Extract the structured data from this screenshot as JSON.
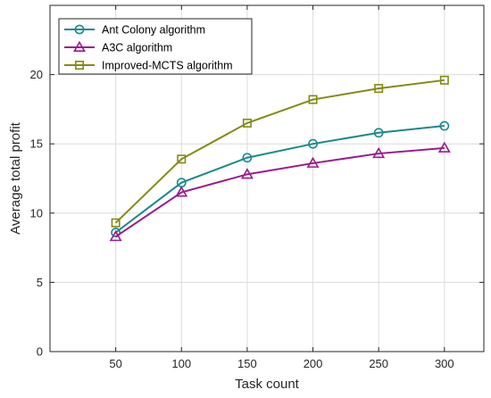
{
  "chart_data": {
    "type": "line",
    "xlabel": "Task count",
    "ylabel": "Average total profit",
    "x": [
      50,
      100,
      150,
      200,
      250,
      300
    ],
    "xlim": [
      0,
      330
    ],
    "ylim": [
      0,
      25
    ],
    "xticks": [
      50,
      100,
      150,
      200,
      250,
      300
    ],
    "yticks": [
      0,
      5,
      10,
      15,
      20
    ],
    "grid": true,
    "legend_position": "top-left",
    "series": [
      {
        "name": "Ant Colony algorithm",
        "color": "#1a8a8a",
        "marker": "circle",
        "values": [
          8.6,
          12.2,
          14.0,
          15.0,
          15.8,
          16.3
        ]
      },
      {
        "name": "A3C algorithm",
        "color": "#9b1a8e",
        "marker": "triangle",
        "values": [
          8.3,
          11.5,
          12.8,
          13.6,
          14.3,
          14.7
        ]
      },
      {
        "name": "Improved-MCTS algorithm",
        "color": "#848a12",
        "marker": "square",
        "values": [
          9.3,
          13.9,
          16.5,
          18.2,
          19.0,
          19.6
        ]
      }
    ]
  }
}
